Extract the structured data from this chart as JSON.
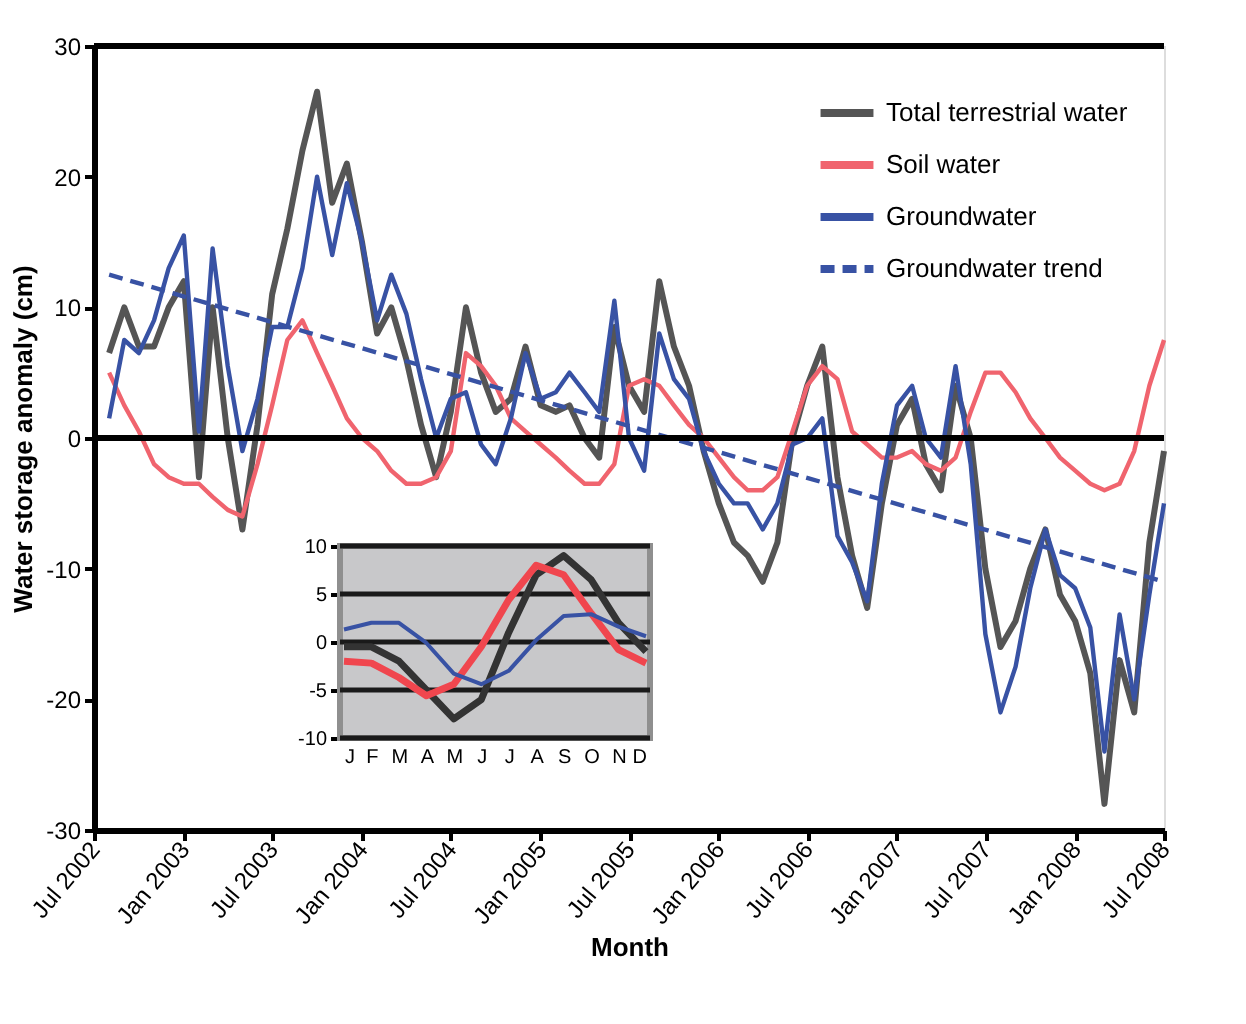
{
  "chart_data": [
    {
      "type": "line",
      "xlabel": "Month",
      "ylabel": "Water storage anomaly (cm)",
      "x": [
        "2002-08",
        "2002-09",
        "2002-10",
        "2002-11",
        "2002-12",
        "2003-01",
        "2003-02",
        "2003-03",
        "2003-04",
        "2003-05",
        "2003-06",
        "2003-07",
        "2003-08",
        "2003-09",
        "2003-10",
        "2003-11",
        "2003-12",
        "2004-01",
        "2004-02",
        "2004-03",
        "2004-04",
        "2004-05",
        "2004-06",
        "2004-07",
        "2004-08",
        "2004-09",
        "2004-10",
        "2004-11",
        "2004-12",
        "2005-01",
        "2005-02",
        "2005-03",
        "2005-04",
        "2005-05",
        "2005-06",
        "2005-07",
        "2005-08",
        "2005-09",
        "2005-10",
        "2005-11",
        "2005-12",
        "2006-01",
        "2006-02",
        "2006-03",
        "2006-04",
        "2006-05",
        "2006-06",
        "2006-07",
        "2006-08",
        "2006-09",
        "2006-10",
        "2006-11",
        "2006-12",
        "2007-01",
        "2007-02",
        "2007-03",
        "2007-04",
        "2007-05",
        "2007-06",
        "2007-07",
        "2007-08",
        "2007-09",
        "2007-10",
        "2007-11",
        "2007-12",
        "2008-01",
        "2008-02",
        "2008-03",
        "2008-04",
        "2008-05",
        "2008-06",
        "2008-07"
      ],
      "series": [
        {
          "name": "Total terrestrial water",
          "color": "#555555",
          "values": [
            6.5,
            10,
            7,
            7,
            10,
            12,
            -3,
            10,
            0,
            -7,
            1,
            11,
            16,
            22,
            26.5,
            18,
            21,
            15,
            8,
            10,
            6,
            1,
            -3,
            2,
            10,
            5,
            2,
            3,
            7,
            2.5,
            2,
            2.5,
            0,
            -1.5,
            8.5,
            4,
            2,
            12,
            7,
            4,
            -1,
            -5,
            -8,
            -9,
            -11,
            -8,
            0,
            4,
            7,
            -3,
            -9,
            -13,
            -5,
            1,
            3,
            -2,
            -4,
            4,
            0,
            -10,
            -16,
            -14,
            -10,
            -7,
            -12,
            -14,
            -18,
            -28,
            -17,
            -21,
            -8,
            -1
          ]
        },
        {
          "name": "Soil water",
          "color": "#f0646e",
          "values": [
            5,
            2.5,
            0.5,
            -2,
            -3,
            -3.5,
            -3.5,
            -4.5,
            -5.5,
            -6,
            -2,
            2.5,
            7.5,
            9,
            6.5,
            4,
            1.5,
            0,
            -1,
            -2.5,
            -3.5,
            -3.5,
            -3,
            -1,
            6.5,
            5.5,
            4,
            1.5,
            0.5,
            -0.5,
            -1.5,
            -2.5,
            -3.5,
            -3.5,
            -2,
            4,
            4.5,
            4,
            2.5,
            1,
            0,
            -1.5,
            -3,
            -4,
            -4,
            -3,
            0.5,
            4,
            5.5,
            4.5,
            0.5,
            -0.5,
            -1.5,
            -1.5,
            -1,
            -2,
            -2.5,
            -1.5,
            2,
            5,
            5,
            3.5,
            1.5,
            0,
            -1.5,
            -2.5,
            -3.5,
            -4,
            -3.5,
            -1,
            4,
            7.5
          ]
        },
        {
          "name": "Groundwater",
          "color": "#3852a4",
          "values": [
            1.5,
            7.5,
            6.5,
            9,
            13,
            15.5,
            0.5,
            14.5,
            5.5,
            -1,
            3,
            8.5,
            8.5,
            13,
            20,
            14,
            19.5,
            15,
            9,
            12.5,
            9.5,
            4.5,
            0,
            3,
            3.5,
            -0.5,
            -2,
            1.5,
            6.5,
            3,
            3.5,
            5,
            3.5,
            2,
            10.5,
            0,
            -2.5,
            8,
            4.5,
            3,
            -1,
            -3.5,
            -5,
            -5,
            -7,
            -5,
            -0.5,
            0,
            1.5,
            -7.5,
            -9.5,
            -12.5,
            -3.5,
            2.5,
            4,
            0,
            -1.5,
            5.5,
            -2,
            -15,
            -21,
            -17.5,
            -11.5,
            -7,
            -10.5,
            -11.5,
            -14.5,
            -24,
            -13.5,
            -20,
            -12,
            -5
          ]
        },
        {
          "name": "Groundwater trend",
          "color": "#3852a4",
          "line_style": "dashed",
          "x": [
            "2002-08",
            "2008-07"
          ],
          "values": [
            12.5,
            -11
          ]
        }
      ],
      "xlim": [
        "2002-07",
        "2008-07"
      ],
      "xticks": [
        {
          "value": "2002-07",
          "label": "Jul 2002"
        },
        {
          "value": "2003-01",
          "label": "Jan 2003"
        },
        {
          "value": "2003-07",
          "label": "Jul 2003"
        },
        {
          "value": "2004-01",
          "label": "Jan 2004"
        },
        {
          "value": "2004-07",
          "label": "Jul 2004"
        },
        {
          "value": "2005-01",
          "label": "Jan 2005"
        },
        {
          "value": "2005-07",
          "label": "Jul 2005"
        },
        {
          "value": "2006-01",
          "label": "Jan 2006"
        },
        {
          "value": "2006-07",
          "label": "Jul 2006"
        },
        {
          "value": "2007-01",
          "label": "Jan 2007"
        },
        {
          "value": "2007-07",
          "label": "Jul 2007"
        },
        {
          "value": "2008-01",
          "label": "Jan 2008"
        },
        {
          "value": "2008-07",
          "label": "Jul 2008"
        }
      ],
      "ylim": [
        -30,
        30
      ],
      "yticks": [
        -30,
        -20,
        -10,
        0,
        10,
        20,
        30
      ],
      "ref_lines": [
        {
          "axis": "y",
          "value": 0,
          "color": "#000000"
        }
      ],
      "legend": "top right",
      "grid": false
    },
    {
      "type": "line",
      "categories": [
        "J",
        "F",
        "M",
        "A",
        "M",
        "J",
        "J",
        "A",
        "S",
        "O",
        "N",
        "D"
      ],
      "series": [
        {
          "color": "#333333",
          "values": [
            -0.5,
            -0.5,
            -2,
            -5,
            -8,
            -6,
            1,
            7,
            9,
            6.5,
            2,
            -1
          ]
        },
        {
          "color": "#f0464e",
          "values": [
            -2,
            -2.2,
            -3.7,
            -5.6,
            -4.4,
            -0.5,
            4.4,
            8,
            7,
            3,
            -0.8,
            -2.2
          ]
        },
        {
          "color": "#3852a4",
          "values": [
            1.3,
            2,
            2,
            -0.1,
            -3.3,
            -4.4,
            -3,
            0.2,
            2.7,
            2.9,
            1.6,
            0.6
          ]
        }
      ],
      "ylim": [
        -10,
        10
      ],
      "yticks": [
        -10,
        -5,
        0,
        5,
        10
      ],
      "grid": "y"
    }
  ]
}
